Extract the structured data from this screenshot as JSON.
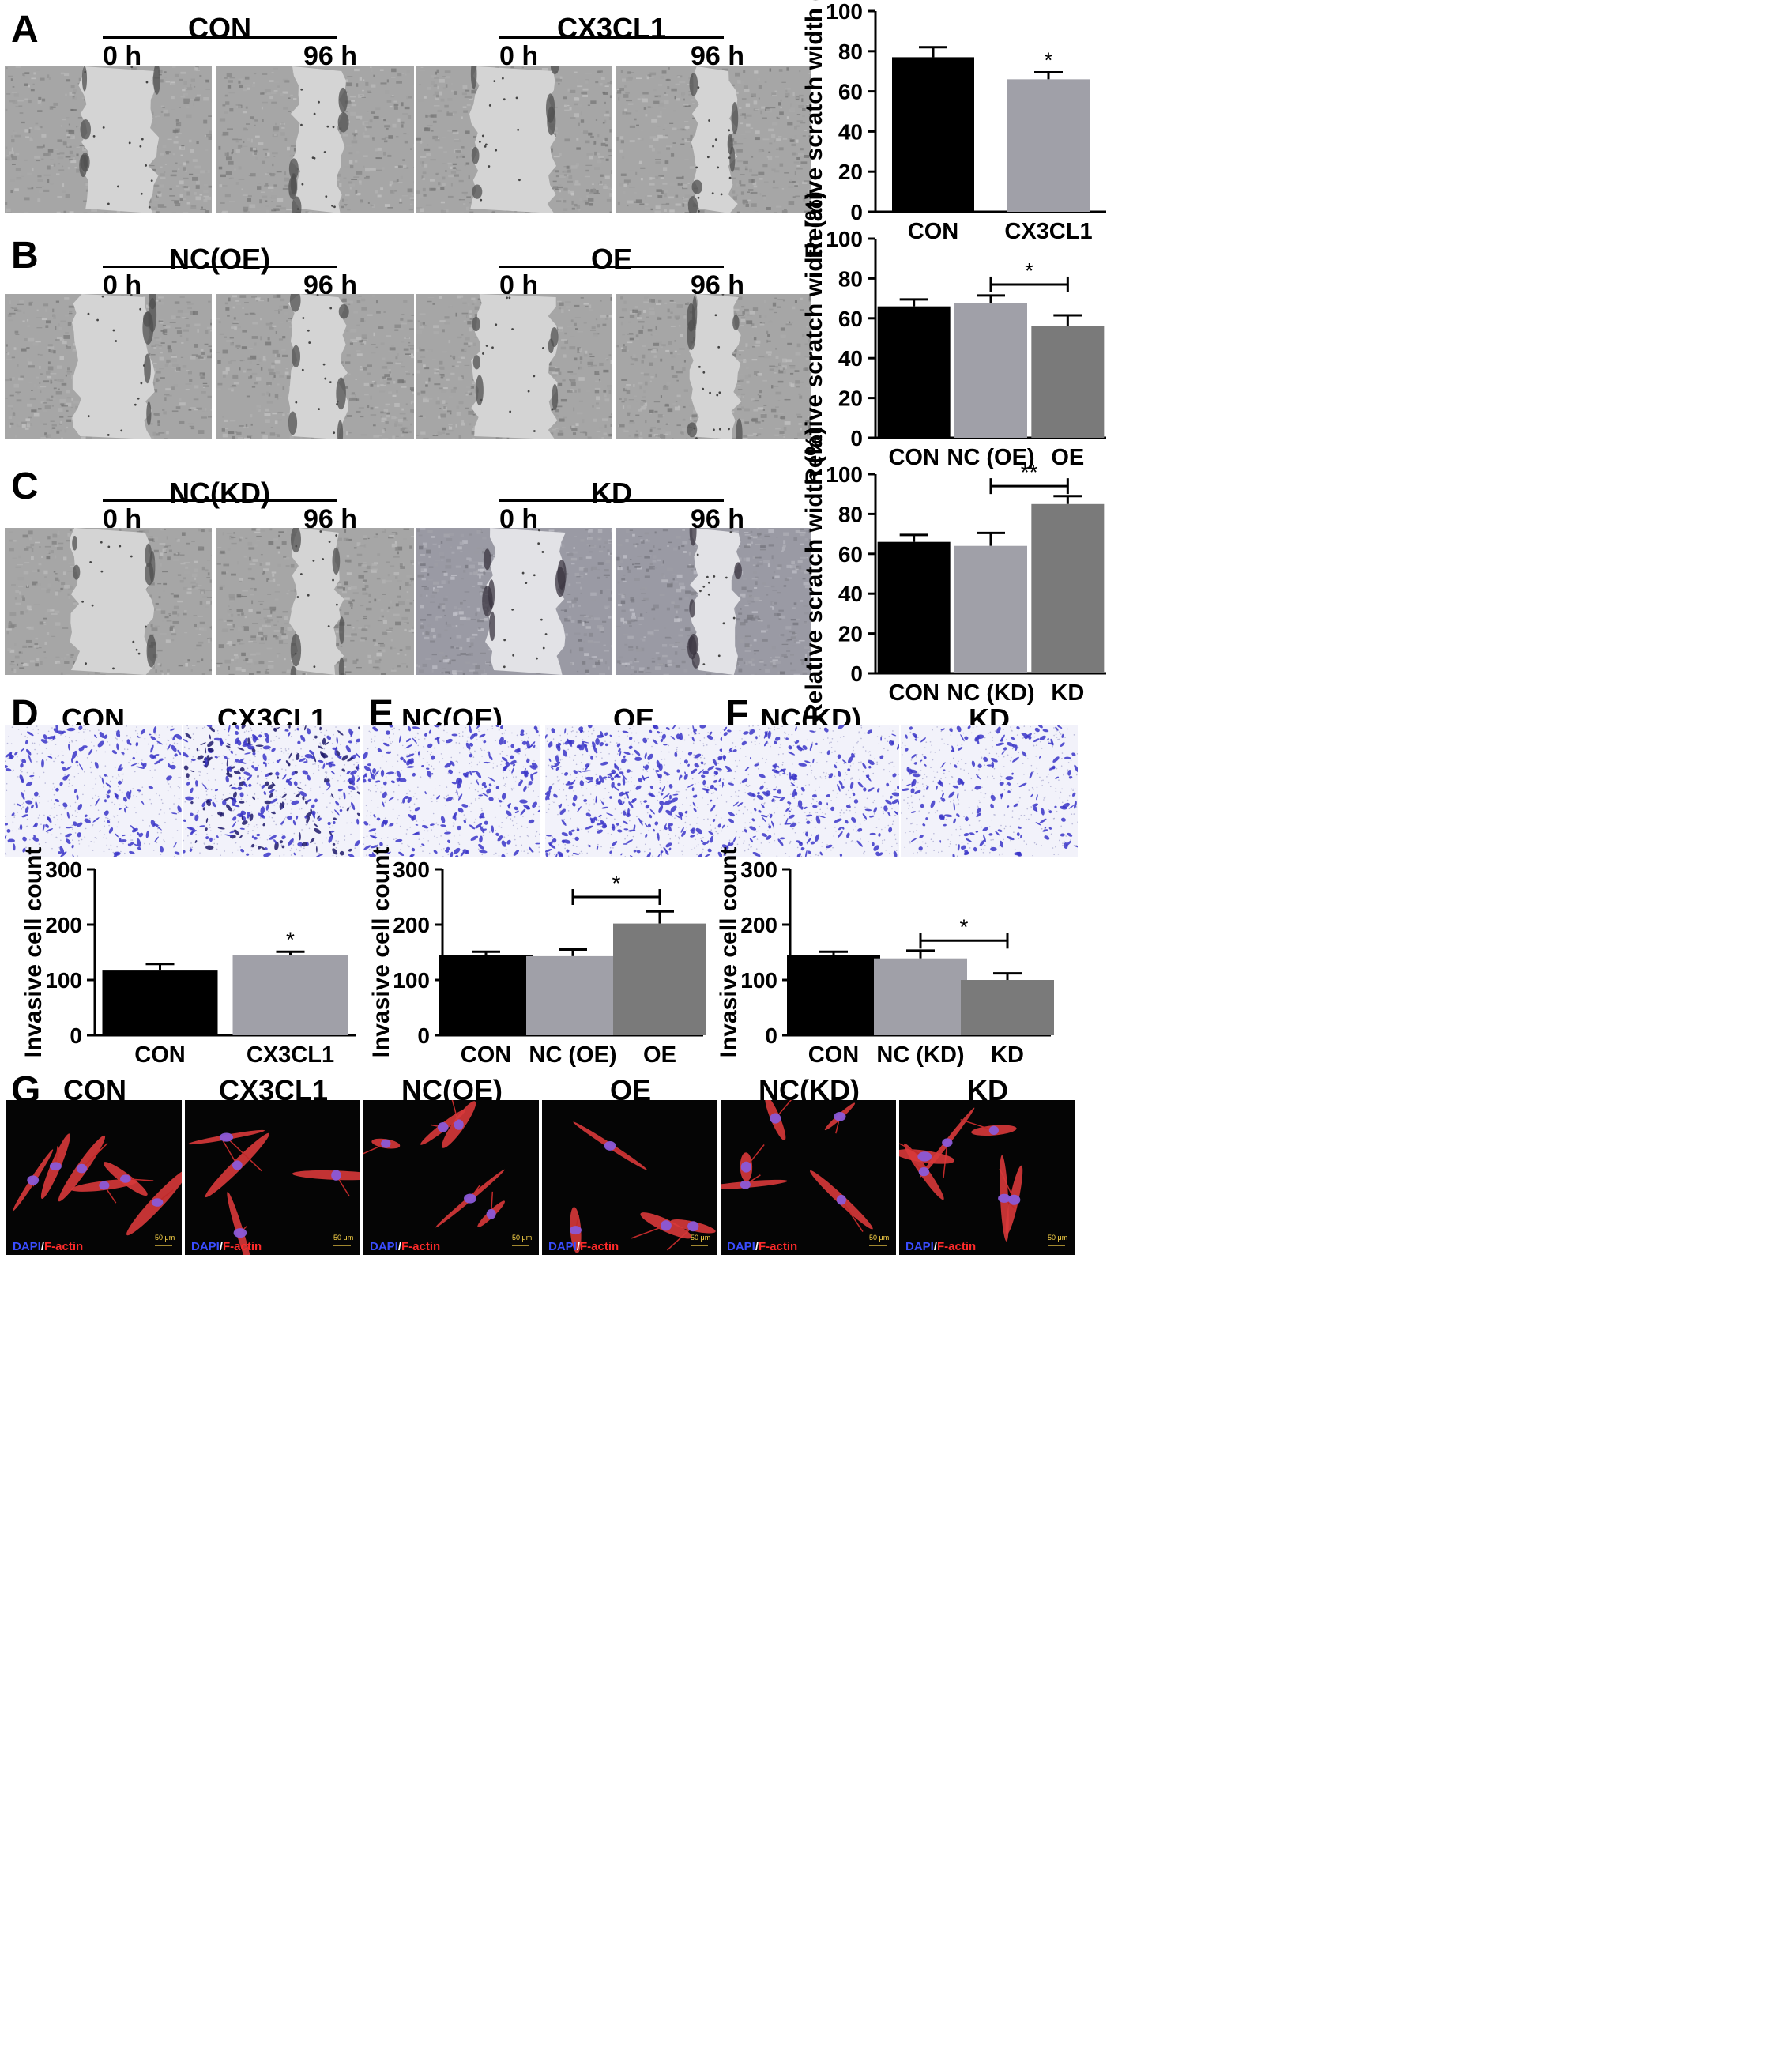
{
  "panel_labels": {
    "A": "A",
    "B": "B",
    "C": "C",
    "D": "D",
    "E": "E",
    "F": "F",
    "G": "G"
  },
  "scratch_rows": [
    {
      "groups": [
        "CON",
        "CX3CL1"
      ],
      "times": [
        "0 h",
        "96 h",
        "0 h",
        "96 h"
      ]
    },
    {
      "groups": [
        "NC(OE)",
        "OE"
      ],
      "times": [
        "0 h",
        "96 h",
        "0 h",
        "96 h"
      ]
    },
    {
      "groups": [
        "NC(KD)",
        "KD"
      ],
      "times": [
        "0 h",
        "96 h",
        "0 h",
        "96 h"
      ]
    }
  ],
  "invasion_titles": [
    [
      "CON",
      "CX3CL1"
    ],
    [
      "NC(OE)",
      "OE"
    ],
    [
      "NC(KD)",
      "KD"
    ]
  ],
  "fluorescence": {
    "titles": [
      "CON",
      "CX3CL1",
      "NC(OE)",
      "OE",
      "NC(KD)",
      "KD"
    ],
    "caption_dapi": "DAPI",
    "caption_slash": "/",
    "caption_factin": "F-actin",
    "scale_bar": "50 μm"
  },
  "colors": {
    "black": "#000000",
    "light_gray": "#a0a0a8",
    "dark_gray": "#7a7a7a",
    "dapi_blue": "#3a4dff",
    "factin_red": "#ff2a2a",
    "crystal_violet": "#3b36c8"
  },
  "chart_data": [
    {
      "type": "bar",
      "panel": "A",
      "categories": [
        "CON",
        "CX3CL1"
      ],
      "values": [
        77,
        66
      ],
      "errors": [
        5,
        3.5
      ],
      "colors": [
        "#000000",
        "#a0a0a8"
      ],
      "ylabel": "Relative scratch width (%)",
      "ylim": [
        0,
        100
      ],
      "yticks": [
        0,
        20,
        40,
        60,
        80,
        100
      ],
      "annotations": [
        {
          "text": "*",
          "over": 1
        }
      ],
      "brackets": []
    },
    {
      "type": "bar",
      "panel": "B",
      "categories": [
        "CON",
        "NC (OE)",
        "OE"
      ],
      "values": [
        66,
        67.5,
        56
      ],
      "errors": [
        3.5,
        4,
        5.5
      ],
      "colors": [
        "#000000",
        "#a0a0a8",
        "#7a7a7a"
      ],
      "ylabel": "Relative scratch width (%)",
      "ylim": [
        0,
        100
      ],
      "yticks": [
        0,
        20,
        40,
        60,
        80,
        100
      ],
      "annotations": [],
      "brackets": [
        {
          "from": 1,
          "to": 2,
          "y": 77,
          "text": "*"
        }
      ]
    },
    {
      "type": "bar",
      "panel": "C",
      "categories": [
        "CON",
        "NC (KD)",
        "KD"
      ],
      "values": [
        66,
        64,
        85
      ],
      "errors": [
        3.5,
        6.5,
        4
      ],
      "colors": [
        "#000000",
        "#a0a0a8",
        "#7a7a7a"
      ],
      "ylabel": "Relative scratch width (%)",
      "ylim": [
        0,
        100
      ],
      "yticks": [
        0,
        20,
        40,
        60,
        80,
        100
      ],
      "annotations": [],
      "brackets": [
        {
          "from": 1,
          "to": 2,
          "y": 94,
          "text": "**"
        }
      ]
    },
    {
      "type": "bar",
      "panel": "D",
      "categories": [
        "CON",
        "CX3CL1"
      ],
      "values": [
        117,
        145
      ],
      "errors": [
        12,
        6
      ],
      "colors": [
        "#000000",
        "#a0a0a8"
      ],
      "ylabel": "Invasive cell count",
      "ylim": [
        0,
        300
      ],
      "yticks": [
        0,
        100,
        200,
        300
      ],
      "annotations": [
        {
          "text": "*",
          "over": 1
        }
      ],
      "brackets": []
    },
    {
      "type": "bar",
      "panel": "E",
      "categories": [
        "CON",
        "NC (OE)",
        "OE"
      ],
      "values": [
        145,
        143,
        202
      ],
      "errors": [
        6,
        12,
        22
      ],
      "colors": [
        "#000000",
        "#a0a0a8",
        "#7a7a7a"
      ],
      "ylabel": "Invasive cell count",
      "ylim": [
        0,
        300
      ],
      "yticks": [
        0,
        100,
        200,
        300
      ],
      "annotations": [],
      "brackets": [
        {
          "from": 1,
          "to": 2,
          "y": 250,
          "text": "*"
        }
      ]
    },
    {
      "type": "bar",
      "panel": "F",
      "categories": [
        "CON",
        "NC (KD)",
        "KD"
      ],
      "values": [
        145,
        139,
        100
      ],
      "errors": [
        6,
        14,
        12
      ],
      "colors": [
        "#000000",
        "#a0a0a8",
        "#7a7a7a"
      ],
      "ylabel": "Invasive cell count",
      "ylim": [
        0,
        300
      ],
      "yticks": [
        0,
        100,
        200,
        300
      ],
      "annotations": [],
      "brackets": [
        {
          "from": 1,
          "to": 2,
          "y": 171,
          "text": "*"
        }
      ]
    }
  ]
}
